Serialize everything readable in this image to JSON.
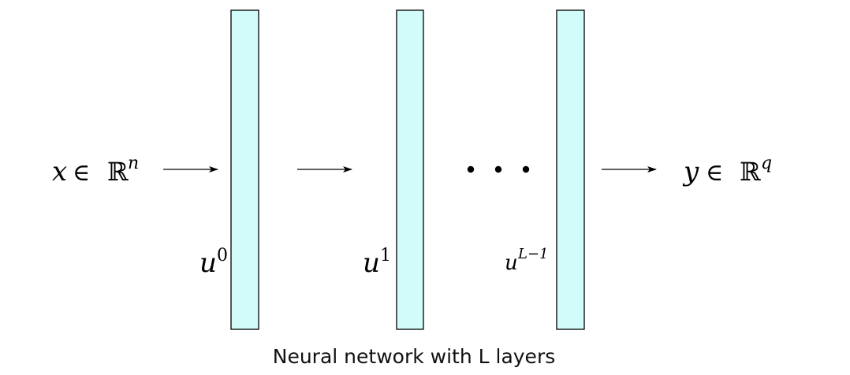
{
  "diagram": {
    "input": {
      "var": "x",
      "rel": "∈",
      "set": "ℝ",
      "sup": "n"
    },
    "output": {
      "var": "y",
      "rel": "∈",
      "set": "ℝ",
      "sup": "q"
    },
    "layers": [
      {
        "base": "u",
        "sup": "0"
      },
      {
        "base": "u",
        "sup": "1"
      },
      {
        "base": "u",
        "sup": "L−1"
      }
    ],
    "ellipsis": "• • •",
    "caption": "Neural network with L layers",
    "colors": {
      "layer_fill": "#d2fcfa",
      "layer_stroke": "#000000"
    }
  }
}
